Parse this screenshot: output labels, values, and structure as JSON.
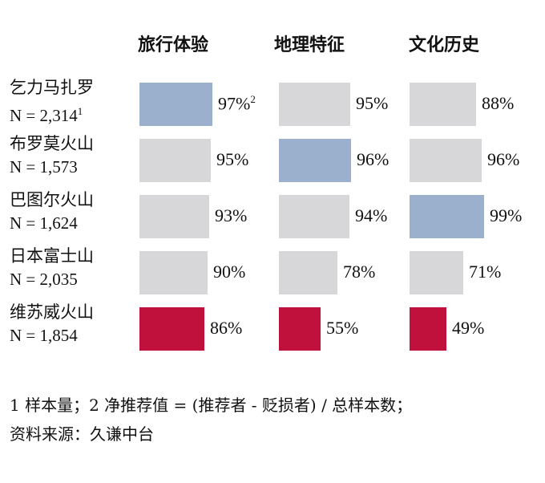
{
  "chart_data": {
    "type": "table",
    "columns": [
      "旅行体验",
      "地理特征",
      "文化历史"
    ],
    "rows": [
      {
        "name": "乞力马扎罗",
        "n": "N = 2,314",
        "n_sup": "1",
        "values": [
          97,
          95,
          88
        ],
        "highlight": [
          1,
          0,
          0
        ]
      },
      {
        "name": "布罗莫火山",
        "n": "N = 1,573",
        "n_sup": "",
        "values": [
          95,
          96,
          96
        ],
        "highlight": [
          0,
          1,
          0
        ]
      },
      {
        "name": "巴图尔火山",
        "n": "N = 1,624",
        "n_sup": "",
        "values": [
          93,
          94,
          99
        ],
        "highlight": [
          0,
          0,
          1
        ]
      },
      {
        "name": "日本富士山",
        "n": "N = 2,035",
        "n_sup": "",
        "values": [
          90,
          78,
          71
        ],
        "highlight": [
          0,
          0,
          0
        ]
      },
      {
        "name": "维苏威火山",
        "n": "N = 1,854",
        "n_sup": "",
        "values": [
          86,
          55,
          49
        ],
        "highlight": [
          2,
          2,
          2
        ]
      }
    ],
    "value_suffix": "%",
    "first_value_sup": "2",
    "colors": {
      "gray": "#d7d7d9",
      "blue": "#9bb0cc",
      "red": "#c0103c"
    }
  },
  "footnotes": [
    "1 样本量；2 净推荐值 = (推荐者 - 贬损者) / 总样本数；",
    "资料来源：久谦中台"
  ]
}
